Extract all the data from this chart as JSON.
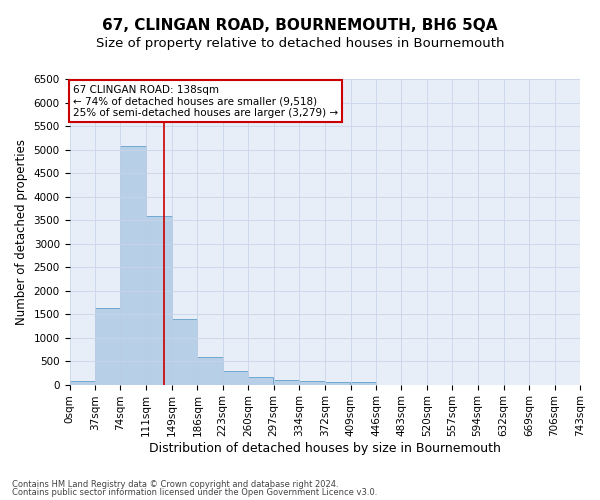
{
  "title": "67, CLINGAN ROAD, BOURNEMOUTH, BH6 5QA",
  "subtitle": "Size of property relative to detached houses in Bournemouth",
  "xlabel": "Distribution of detached houses by size in Bournemouth",
  "ylabel": "Number of detached properties",
  "bin_edges": [
    0,
    37,
    74,
    111,
    149,
    186,
    223,
    260,
    297,
    334,
    372,
    409,
    446,
    483,
    520,
    557,
    594,
    632,
    669,
    706,
    743
  ],
  "bar_heights": [
    75,
    1620,
    5080,
    3580,
    1400,
    590,
    295,
    155,
    105,
    75,
    55,
    55,
    0,
    0,
    0,
    0,
    0,
    0,
    0,
    0
  ],
  "bar_color": "#b8cfe8",
  "bar_edgecolor": "#6fa8d0",
  "property_size": 138,
  "vline_color": "#cc0000",
  "annotation_text": "67 CLINGAN ROAD: 138sqm\n← 74% of detached houses are smaller (9,518)\n25% of semi-detached houses are larger (3,279) →",
  "annotation_box_color": "#cc0000",
  "ylim": [
    0,
    6500
  ],
  "yticks": [
    0,
    500,
    1000,
    1500,
    2000,
    2500,
    3000,
    3500,
    4000,
    4500,
    5000,
    5500,
    6000,
    6500
  ],
  "footnote1": "Contains HM Land Registry data © Crown copyright and database right 2024.",
  "footnote2": "Contains public sector information licensed under the Open Government Licence v3.0.",
  "background_color": "#ffffff",
  "axes_background": "#e8eef8",
  "grid_color": "#c8d4e8",
  "title_fontsize": 11,
  "subtitle_fontsize": 9.5,
  "ylabel_fontsize": 8.5,
  "xlabel_fontsize": 9,
  "tick_label_fontsize": 7.5,
  "annotation_fontsize": 7.5,
  "footnote_fontsize": 6
}
